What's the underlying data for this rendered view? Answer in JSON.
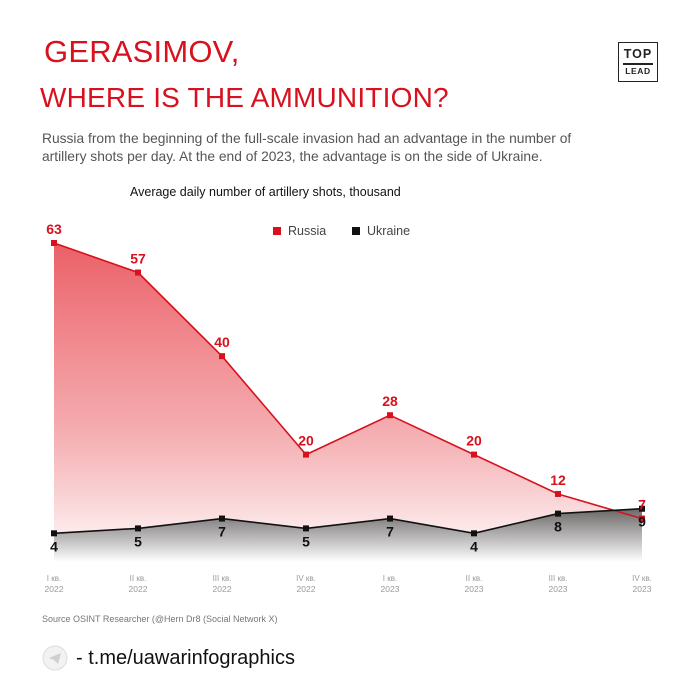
{
  "header": {
    "title_line1": "GERASIMOV,",
    "title_line2": "WHERE IS THE AMMUNITION?",
    "subtitle": "Russia from the beginning of the full-scale invasion had an advantage in the number of artillery shots per day. At the end of 2023, the advantage is on the side of Ukraine.",
    "logo_top": "TOP",
    "logo_bottom": "LEAD"
  },
  "chart_data": {
    "type": "area",
    "title": "Average daily number of artillery shots, thousand",
    "categories": [
      {
        "q": "I кв.",
        "y": "2022"
      },
      {
        "q": "II кв.",
        "y": "2022"
      },
      {
        "q": "III кв.",
        "y": "2022"
      },
      {
        "q": "IV кв.",
        "y": "2022"
      },
      {
        "q": "I кв.",
        "y": "2023"
      },
      {
        "q": "II кв.",
        "y": "2023"
      },
      {
        "q": "III кв.",
        "y": "2023"
      },
      {
        "q": "IV кв.",
        "y": "2023"
      }
    ],
    "series": [
      {
        "name": "Russia",
        "values": [
          63,
          57,
          40,
          20,
          28,
          20,
          12,
          7
        ],
        "color": "#d7111e"
      },
      {
        "name": "Ukraine",
        "values": [
          4,
          5,
          7,
          5,
          7,
          4,
          8,
          9
        ],
        "color": "#111111"
      }
    ],
    "ylim": [
      0,
      63
    ],
    "grid": false,
    "legend_position": "top-center"
  },
  "footer": {
    "source": "Source OSINT Researcher (@Hern Dr8 (Social Network X)",
    "telegram": "- t.me/uawarinfographics"
  }
}
